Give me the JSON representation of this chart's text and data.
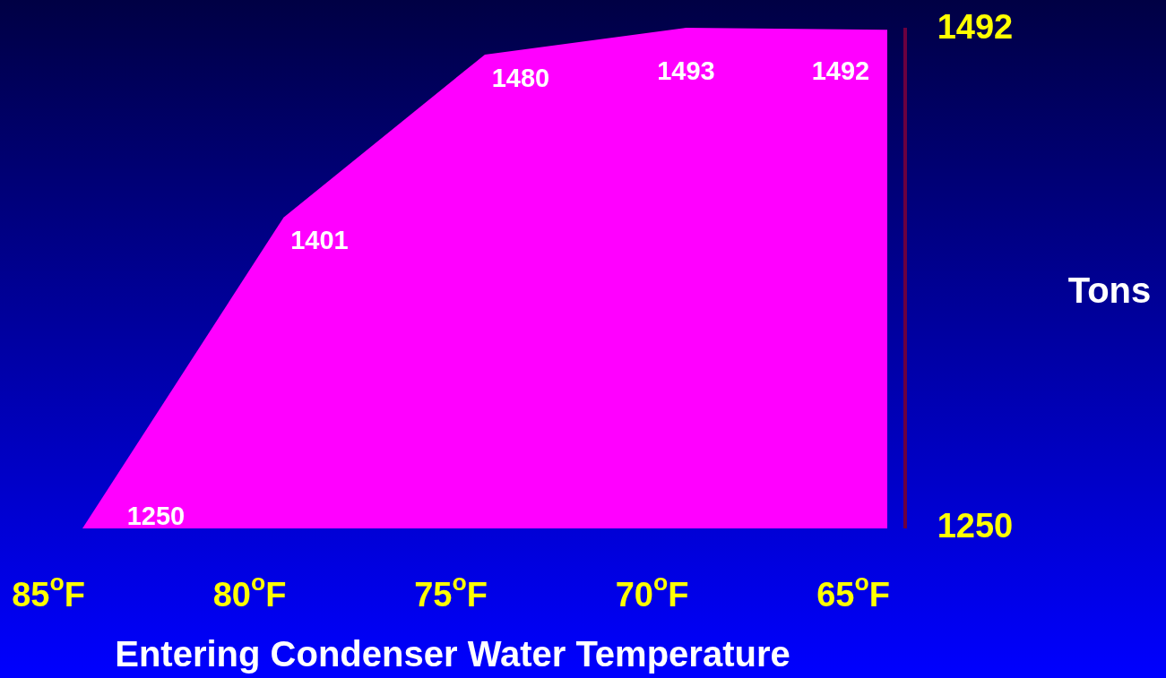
{
  "chart_data": {
    "type": "area",
    "categories": [
      "85$^{o}$F",
      "80$^{o}$F",
      "75$^{o}$F",
      "70$^{o}$F",
      "65$^{o}$F"
    ],
    "values": [
      1250,
      1401,
      1480,
      1493,
      1492
    ],
    "color": "#ff00ff",
    "data_labels": true,
    "xlabel": "Entering Condenser Water Temperature",
    "ylabel": "Tons",
    "ylim": [
      1250,
      1493
    ],
    "yticks": [
      1250,
      1492
    ],
    "grid": false
  }
}
